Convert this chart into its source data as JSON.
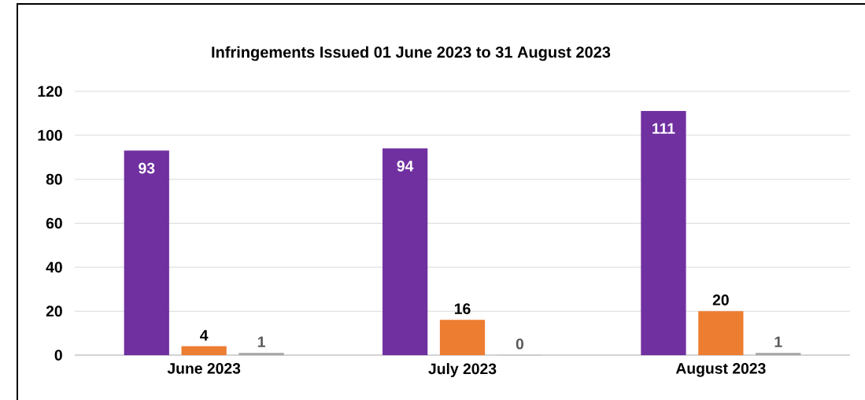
{
  "chart_data": {
    "type": "bar",
    "title": "Infringements Issued 01 June 2023 to 31 August 2023",
    "categories": [
      "June 2023",
      "July 2023",
      "August 2023"
    ],
    "series": [
      {
        "color": "#7030a0",
        "values": [
          93,
          94,
          111
        ]
      },
      {
        "color": "#ed7d31",
        "values": [
          4,
          16,
          20
        ]
      },
      {
        "color": "#a5a5a5",
        "values": [
          1,
          0,
          1
        ]
      }
    ],
    "ylim": [
      0,
      120
    ],
    "yticks": [
      0,
      20,
      40,
      60,
      80,
      100,
      120
    ],
    "grid": "y",
    "data_labels": true
  }
}
